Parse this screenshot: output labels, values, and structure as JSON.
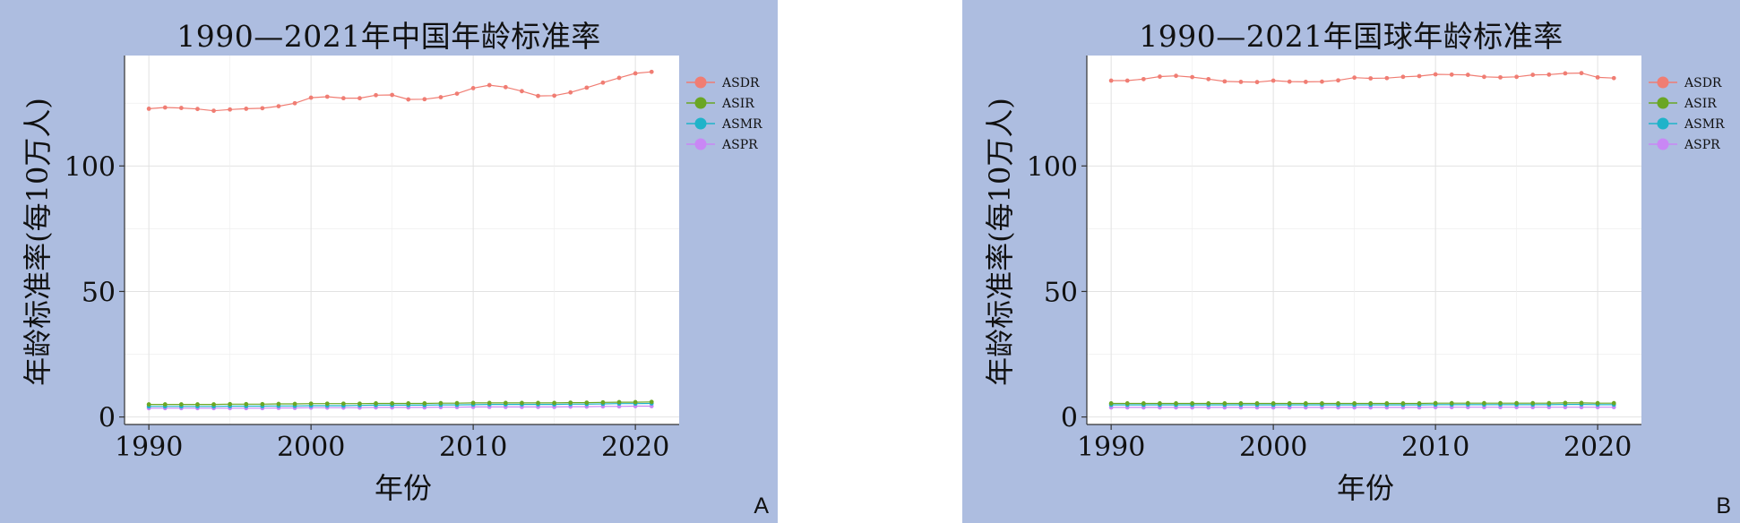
{
  "panels": [
    {
      "letter": "A",
      "chart_data": {
        "type": "line",
        "title": "1990—2021年中国年龄标准率",
        "xlabel": "年份",
        "ylabel": "年龄标准率(每10万人)",
        "x": [
          1990,
          1991,
          1992,
          1993,
          1994,
          1995,
          1996,
          1997,
          1998,
          1999,
          2000,
          2001,
          2002,
          2003,
          2004,
          2005,
          2006,
          2007,
          2008,
          2009,
          2010,
          2011,
          2012,
          2013,
          2014,
          2015,
          2016,
          2017,
          2018,
          2019,
          2020,
          2021
        ],
        "xlim": [
          1988.5,
          2022.7
        ],
        "ylim": [
          -3,
          144
        ],
        "xticks": [
          1990,
          2000,
          2010,
          2020
        ],
        "yticks": [
          0,
          50,
          100
        ],
        "legend_position": "top-right",
        "grid": true,
        "series": [
          {
            "name": "ASDR",
            "color": "#f07d73",
            "values": [
              122.8,
              123.3,
              123.1,
              122.7,
              122.0,
              122.5,
              122.8,
              123.0,
              123.8,
              125.0,
              127.2,
              127.6,
              127.0,
              127.0,
              128.2,
              128.3,
              126.5,
              126.6,
              127.4,
              128.8,
              131.0,
              132.2,
              131.4,
              129.8,
              127.9,
              128.0,
              129.3,
              131.2,
              133.2,
              135.1,
              136.9,
              137.5
            ]
          },
          {
            "name": "ASIR",
            "color": "#6aa624",
            "values": [
              5.0,
              5.0,
              5.0,
              5.0,
              5.0,
              5.1,
              5.1,
              5.1,
              5.2,
              5.2,
              5.3,
              5.3,
              5.3,
              5.3,
              5.4,
              5.4,
              5.4,
              5.4,
              5.5,
              5.5,
              5.6,
              5.6,
              5.6,
              5.6,
              5.6,
              5.6,
              5.7,
              5.7,
              5.8,
              5.9,
              5.9,
              6.0
            ]
          },
          {
            "name": "ASMR",
            "color": "#1fb3c9",
            "values": [
              4.2,
              4.2,
              4.2,
              4.2,
              4.2,
              4.3,
              4.3,
              4.3,
              4.4,
              4.4,
              4.5,
              4.5,
              4.5,
              4.6,
              4.7,
              4.7,
              4.7,
              4.7,
              4.8,
              4.8,
              4.9,
              5.0,
              5.0,
              5.0,
              5.0,
              5.0,
              5.1,
              5.1,
              5.2,
              5.3,
              5.3,
              5.4
            ]
          },
          {
            "name": "ASPR",
            "color": "#c987f5",
            "values": [
              3.5,
              3.5,
              3.5,
              3.5,
              3.5,
              3.5,
              3.5,
              3.5,
              3.6,
              3.6,
              3.7,
              3.7,
              3.7,
              3.7,
              3.8,
              3.8,
              3.8,
              3.8,
              3.9,
              3.9,
              4.0,
              4.0,
              4.0,
              4.0,
              4.0,
              4.0,
              4.1,
              4.1,
              4.2,
              4.2,
              4.3,
              4.3
            ]
          }
        ]
      }
    },
    {
      "letter": "B",
      "chart_data": {
        "type": "line",
        "title": "1990—2021年国球年龄标准率",
        "xlabel": "年份",
        "ylabel": "年龄标准率(每10万人)",
        "x": [
          1990,
          1991,
          1992,
          1993,
          1994,
          1995,
          1996,
          1997,
          1998,
          1999,
          2000,
          2001,
          2002,
          2003,
          2004,
          2005,
          2006,
          2007,
          2008,
          2009,
          2010,
          2011,
          2012,
          2013,
          2014,
          2015,
          2016,
          2017,
          2018,
          2019,
          2020,
          2021
        ],
        "xlim": [
          1988.5,
          2022.7
        ],
        "ylim": [
          -3,
          144
        ],
        "xticks": [
          1990,
          2000,
          2010,
          2020
        ],
        "yticks": [
          0,
          50,
          100
        ],
        "legend_position": "top-right",
        "grid": true,
        "series": [
          {
            "name": "ASDR",
            "color": "#f07d73",
            "values": [
              134.0,
              134.0,
              134.6,
              135.6,
              135.9,
              135.4,
              134.6,
              133.7,
              133.5,
              133.4,
              134.0,
              133.6,
              133.5,
              133.6,
              134.1,
              135.2,
              134.9,
              135.0,
              135.5,
              135.8,
              136.5,
              136.4,
              136.3,
              135.5,
              135.3,
              135.5,
              136.3,
              136.4,
              136.9,
              137.0,
              135.3,
              135.0
            ]
          },
          {
            "name": "ASIR",
            "color": "#6aa624",
            "values": [
              5.4,
              5.4,
              5.4,
              5.4,
              5.4,
              5.4,
              5.4,
              5.4,
              5.4,
              5.4,
              5.4,
              5.4,
              5.4,
              5.4,
              5.4,
              5.4,
              5.4,
              5.4,
              5.4,
              5.4,
              5.5,
              5.5,
              5.5,
              5.5,
              5.5,
              5.5,
              5.5,
              5.5,
              5.6,
              5.6,
              5.5,
              5.5
            ]
          },
          {
            "name": "ASMR",
            "color": "#1fb3c9",
            "values": [
              4.8,
              4.8,
              4.8,
              4.8,
              4.8,
              4.8,
              4.8,
              4.8,
              4.8,
              4.8,
              4.8,
              4.8,
              4.8,
              4.8,
              4.8,
              4.8,
              4.8,
              4.8,
              4.8,
              4.8,
              4.9,
              4.9,
              4.9,
              4.9,
              4.9,
              4.9,
              4.9,
              4.9,
              5.0,
              5.0,
              4.9,
              4.9
            ]
          },
          {
            "name": "ASPR",
            "color": "#c987f5",
            "values": [
              3.8,
              3.8,
              3.8,
              3.8,
              3.8,
              3.8,
              3.8,
              3.8,
              3.8,
              3.8,
              3.8,
              3.8,
              3.8,
              3.8,
              3.8,
              3.8,
              3.8,
              3.8,
              3.8,
              3.8,
              3.9,
              3.9,
              3.9,
              3.9,
              3.9,
              3.9,
              3.9,
              3.9,
              3.9,
              3.9,
              3.9,
              3.9
            ]
          }
        ]
      }
    }
  ]
}
